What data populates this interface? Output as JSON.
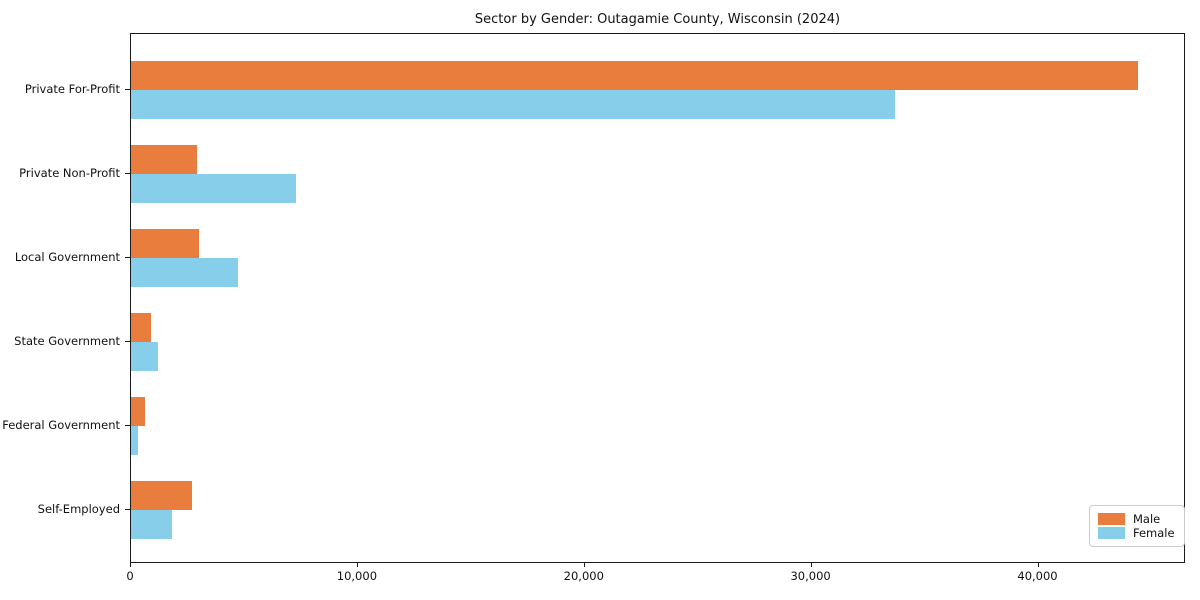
{
  "chart_data": {
    "type": "bar",
    "orientation": "horizontal",
    "title": "Sector by Gender: Outagamie County, Wisconsin (2024)",
    "categories": [
      "Private For-Profit",
      "Private Non-Profit",
      "Local Government",
      "State Government",
      "Federal Government",
      "Self-Employed"
    ],
    "series": [
      {
        "name": "Male",
        "color": "#e87d3e",
        "values": [
          44400,
          2900,
          3000,
          900,
          600,
          2700
        ]
      },
      {
        "name": "Female",
        "color": "#87ceeb",
        "values": [
          33650,
          7250,
          4700,
          1200,
          300,
          1800
        ]
      }
    ],
    "xlim": [
      0,
      46500
    ],
    "x_ticks": [
      {
        "value": 0,
        "label": "0"
      },
      {
        "value": 10000,
        "label": "10,000"
      },
      {
        "value": 20000,
        "label": "20,000"
      },
      {
        "value": 30000,
        "label": "30,000"
      },
      {
        "value": 40000,
        "label": "40,000"
      }
    ],
    "xlabel": "",
    "ylabel": "",
    "grid": false,
    "legend_position": "lower right"
  }
}
